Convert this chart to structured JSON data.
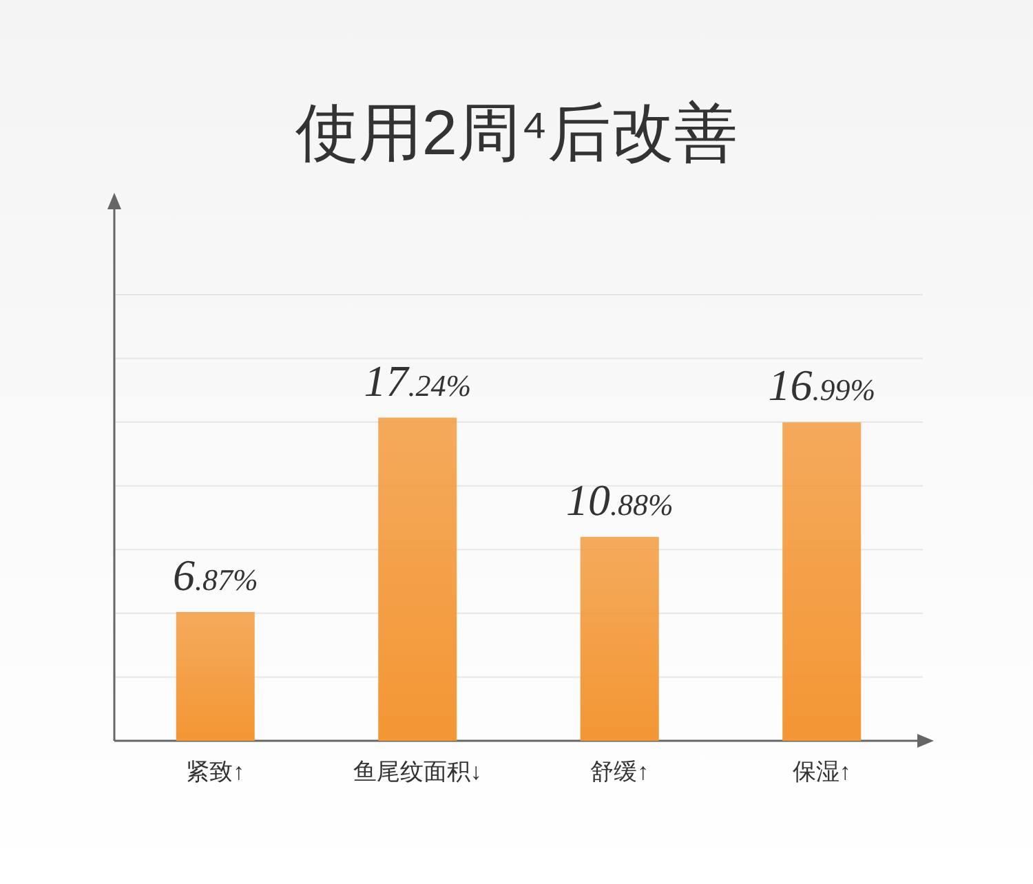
{
  "chart_data": {
    "type": "bar",
    "title": "使用2周⁴后改善",
    "categories": [
      "紧致↑",
      "鱼尾纹面积↓",
      "舒缓↑",
      "保湿↑"
    ],
    "values": [
      6.87,
      17.24,
      10.88,
      16.99
    ],
    "value_labels": [
      "6.87%",
      "17.24%",
      "10.88%",
      "16.99%"
    ],
    "color": "#f39634",
    "ylim": [
      0,
      28.5
    ],
    "yticks": [
      {
        "value": 3.4,
        "label": null
      },
      {
        "value": 6.8,
        "label": null
      },
      {
        "value": 10.2,
        "label": null
      },
      {
        "value": 13.6,
        "label": null
      },
      {
        "value": 17,
        "label": null
      },
      {
        "value": 20.4,
        "label": null
      },
      {
        "value": 23.8,
        "label": null
      }
    ],
    "grid": "y"
  }
}
